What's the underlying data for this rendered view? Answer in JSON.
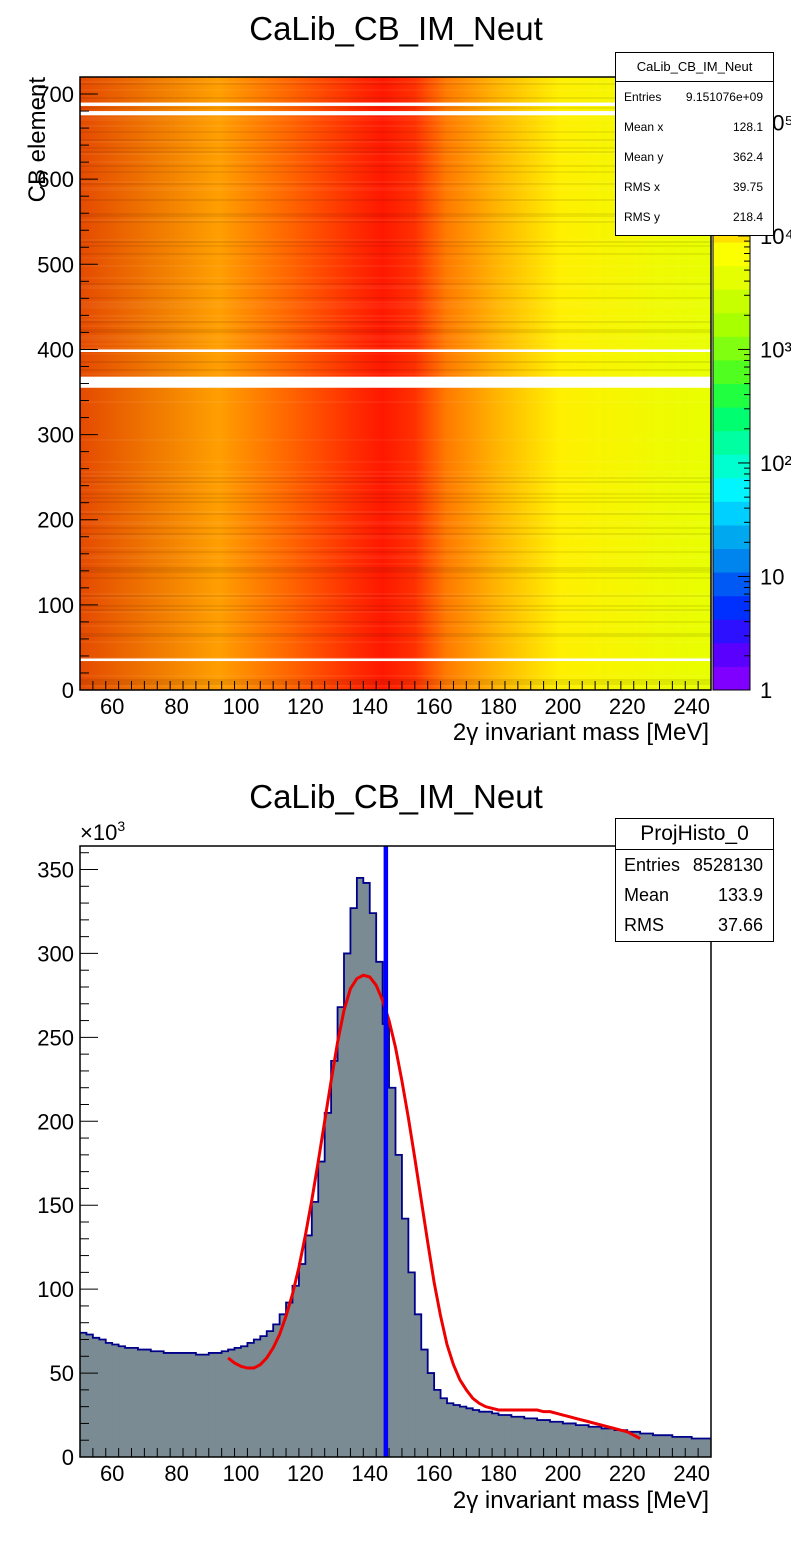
{
  "chart_data": [
    {
      "type": "heatmap",
      "title": "CaLib_CB_IM_Neut",
      "xlabel": "2γ invariant mass [MeV]",
      "ylabel": "CB element",
      "xlim": [
        50,
        246
      ],
      "ylim": [
        0,
        720
      ],
      "x_ticks": [
        "60",
        "80",
        "100",
        "120",
        "140",
        "160",
        "180",
        "200",
        "220",
        "240"
      ],
      "y_ticks": [
        "0",
        "100",
        "200",
        "300",
        "400",
        "500",
        "600",
        "700"
      ],
      "z_scale": "log",
      "z_ticks": [
        "1",
        "10",
        "10²",
        "10³",
        "10⁴",
        "10⁵"
      ],
      "peak_x": 140,
      "empty_rows": [
        [
          355,
          368
        ],
        [
          397,
          400
        ],
        [
          675,
          680
        ],
        [
          686,
          690
        ],
        [
          34,
          37
        ]
      ],
      "stats": {
        "name": "CaLib_CB_IM_Neut",
        "rows": [
          {
            "label": "Entries",
            "value": "9.151076e+09"
          },
          {
            "label": "Mean x",
            "value": "128.1"
          },
          {
            "label": "Mean y",
            "value": "362.4"
          },
          {
            "label": "RMS x",
            "value": "39.75"
          },
          {
            "label": "RMS y",
            "value": "218.4"
          }
        ]
      }
    },
    {
      "type": "bar",
      "title": "CaLib_CB_IM_Neut",
      "xlabel": "2γ invariant mass [MeV]",
      "ylabel": "",
      "y_multiplier": "×10",
      "y_multiplier_exp": "3",
      "xlim": [
        50,
        246
      ],
      "ylim": [
        0,
        364
      ],
      "x_ticks": [
        "60",
        "80",
        "100",
        "120",
        "140",
        "160",
        "180",
        "200",
        "220",
        "240"
      ],
      "y_ticks": [
        "0",
        "50",
        "100",
        "150",
        "200",
        "250",
        "300",
        "350"
      ],
      "bin_width": 2,
      "x_start": 50,
      "values": [
        74,
        73,
        71,
        70,
        68,
        67,
        66,
        65,
        65,
        64,
        64,
        63,
        63,
        62,
        62,
        62,
        62,
        62,
        61,
        61,
        62,
        62,
        63,
        64,
        65,
        66,
        68,
        70,
        72,
        75,
        79,
        85,
        92,
        102,
        115,
        132,
        152,
        176,
        205,
        236,
        268,
        300,
        327,
        345,
        342,
        324,
        295,
        258,
        220,
        180,
        142,
        110,
        85,
        64,
        50,
        40,
        35,
        32,
        31,
        30,
        29,
        28,
        27,
        27,
        26,
        25,
        25,
        24,
        24,
        23,
        23,
        22,
        22,
        21,
        21,
        20,
        20,
        19,
        19,
        18,
        18,
        17,
        17,
        16,
        16,
        15,
        15,
        14,
        14,
        13,
        13,
        13,
        12,
        12,
        12,
        11,
        11,
        11
      ],
      "fit_curve": {
        "name": "fit",
        "x": [
          96,
          98,
          100,
          102,
          104,
          106,
          108,
          110,
          112,
          114,
          116,
          118,
          120,
          122,
          124,
          126,
          128,
          130,
          132,
          134,
          136,
          138,
          140,
          142,
          144,
          146,
          148,
          150,
          152,
          154,
          156,
          158,
          160,
          162,
          164,
          166,
          168,
          170,
          172,
          174,
          176,
          178,
          180,
          182,
          184,
          186,
          188,
          190,
          192,
          194,
          196,
          198,
          200,
          202,
          204,
          206,
          208,
          210,
          212,
          214,
          216,
          218,
          220,
          222,
          224
        ],
        "y": [
          59,
          56,
          54,
          53,
          53,
          55,
          59,
          65,
          73,
          84,
          97,
          113,
          132,
          153,
          176,
          200,
          224,
          247,
          266,
          279,
          285,
          287,
          286,
          281,
          272,
          260,
          244,
          224,
          202,
          178,
          153,
          128,
          104,
          84,
          67,
          55,
          46,
          40,
          35,
          32,
          30,
          29,
          28,
          28,
          28,
          28,
          28,
          28,
          28,
          27,
          27,
          26,
          25,
          24,
          23,
          22,
          21,
          20,
          19,
          18,
          17,
          16,
          15,
          13,
          11
        ]
      },
      "marker_x": 145,
      "colors": {
        "fill": "#7a8b93",
        "line": "#00008b",
        "fit": "#ee0000",
        "marker": "#0000ff"
      },
      "stats": {
        "name": "ProjHisto_0",
        "rows": [
          {
            "label": "Entries",
            "value": "8528130"
          },
          {
            "label": "Mean",
            "value": "133.9"
          },
          {
            "label": "RMS",
            "value": "37.66"
          }
        ]
      }
    }
  ]
}
